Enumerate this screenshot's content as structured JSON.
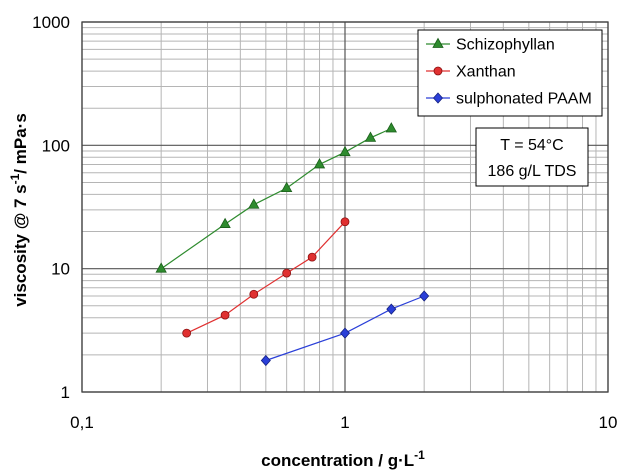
{
  "chart_data": {
    "type": "scatter",
    "x_scale": "log",
    "y_scale": "log",
    "xlim": [
      0.1,
      10
    ],
    "ylim": [
      1,
      1000
    ],
    "grid": true,
    "legend_position": "top-right",
    "x_ticks": [
      "0,1",
      "1",
      "10"
    ],
    "y_ticks": [
      "1",
      "10",
      "100",
      "1000"
    ],
    "xlabel_main": "concentration / g·L",
    "xlabel_sup": "-1",
    "ylabel_main": "viscosity @ 7 s",
    "ylabel_sup": "-1",
    "ylabel_tail": "/ mPa·s",
    "annotation": [
      "T = 54°C",
      "186 g/L TDS"
    ],
    "series": [
      {
        "name": "Schizophyllan",
        "color": "#2e8b2e",
        "marker": "triangle",
        "x": [
          0.2,
          0.35,
          0.45,
          0.6,
          0.8,
          1.0,
          1.25,
          1.5
        ],
        "y": [
          10,
          23,
          33,
          45,
          70,
          88,
          115,
          137
        ]
      },
      {
        "name": "Xanthan",
        "color": "#e03030",
        "marker": "circle",
        "x": [
          0.25,
          0.35,
          0.45,
          0.6,
          0.75,
          1.0
        ],
        "y": [
          3,
          4.2,
          6.2,
          9.2,
          12.4,
          24
        ]
      },
      {
        "name": "sulphonated PAAM",
        "color": "#2a3fd8",
        "marker": "diamond",
        "x": [
          0.5,
          1.0,
          1.5,
          2.0
        ],
        "y": [
          1.8,
          3.0,
          4.7,
          6.0
        ]
      }
    ]
  }
}
